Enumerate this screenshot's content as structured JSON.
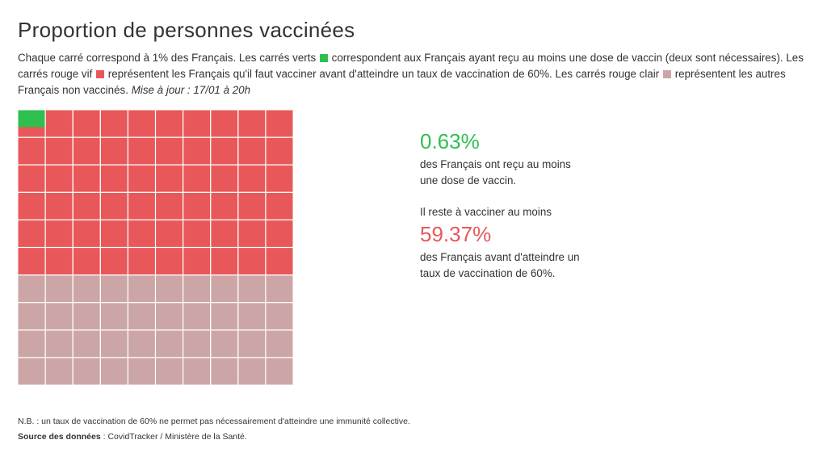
{
  "title": "Proportion de personnes vaccinées",
  "description": {
    "part1": "Chaque carré correspond à 1% des Français. Les carrés verts",
    "part2": "correspondent aux Français ayant reçu au moins une dose de vaccin (deux sont nécessaires). Les carrés rouge vif",
    "part3": "représentent les Français qu'il faut vacciner avant d'atteindre un taux de vaccination de 60%. Les carrés rouge clair",
    "part4": "représentent les autres Français non vaccinés.",
    "update": "Mise à jour : 17/01 à 20h"
  },
  "colors": {
    "vaccinated": "#2fbf4f",
    "to_vaccinate": "#e8585a",
    "others": "#cca6a6",
    "grid_line": "#ffffff"
  },
  "chart_data": {
    "type": "waffle",
    "total_squares": 100,
    "unit": "%",
    "categories": [
      "vaccinated",
      "to_vaccinate",
      "others"
    ],
    "values": [
      0.63,
      59.37,
      40
    ]
  },
  "stats": {
    "vaccinated_value": "0.63%",
    "vaccinated_text_line1": "des Français ont reçu au moins",
    "vaccinated_text_line2": "une dose de vaccin.",
    "remaining_intro": "Il reste à vacciner au moins",
    "remaining_value": "59.37%",
    "remaining_text_line1": "des Français avant d'atteindre un",
    "remaining_text_line2": "taux de vaccination de 60%."
  },
  "footer": {
    "note": "N.B. : un taux de vaccination de 60% ne permet pas nécessairement d'atteindre une immunité collective.",
    "source_label": "Source des données",
    "source_value": " : CovidTracker / Ministère de la Santé."
  }
}
